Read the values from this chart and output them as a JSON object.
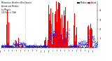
{
  "background_color": "#ffffff",
  "bar_color": "#ff0000",
  "dot_color": "#0000ff",
  "legend_actual_color": "#ff0000",
  "legend_median_color": "#0000ff",
  "ylim": [
    0,
    5
  ],
  "n_points": 1440,
  "vline_positions": [
    360,
    720,
    1080
  ],
  "vline_color": "#bbbbbb",
  "yticks": [
    1,
    2,
    3,
    4
  ],
  "ytick_labels": [
    "1",
    "2",
    "3",
    "4"
  ]
}
